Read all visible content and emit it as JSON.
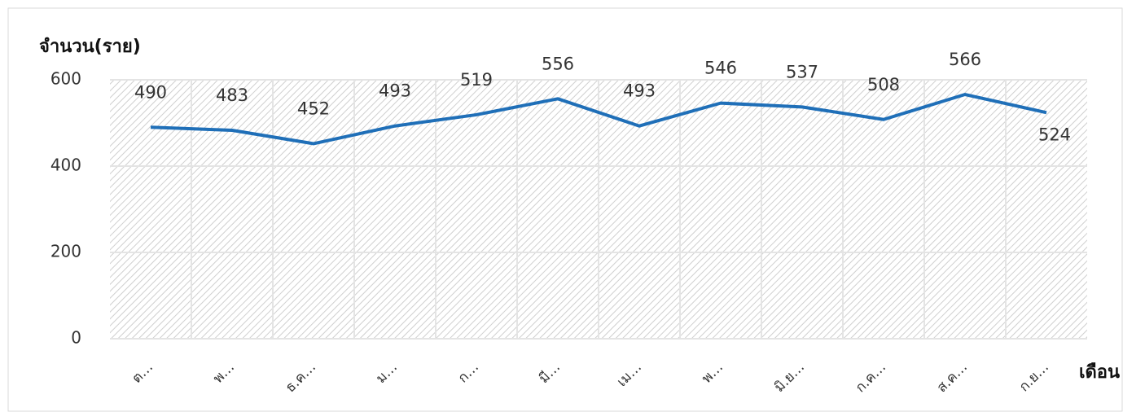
{
  "chart_data": {
    "type": "line",
    "y_label": "จำนวน(ราย)",
    "x_label": "เดือน",
    "categories": [
      "ต…",
      "พ…",
      "ธ.ค…",
      "ม…",
      "ก…",
      "มี…",
      "เม…",
      "พ…",
      "มิ.ย…",
      "ก.ค…",
      "ส.ค…",
      "ก.ย…"
    ],
    "series": [
      {
        "name": "จำนวน",
        "color": "#1f6fb8",
        "values": [
          490,
          483,
          452,
          493,
          519,
          556,
          493,
          546,
          537,
          508,
          566,
          524
        ]
      }
    ],
    "ylim": [
      0,
      600
    ],
    "yticks": [
      0,
      200,
      400,
      600
    ],
    "grid": true
  }
}
